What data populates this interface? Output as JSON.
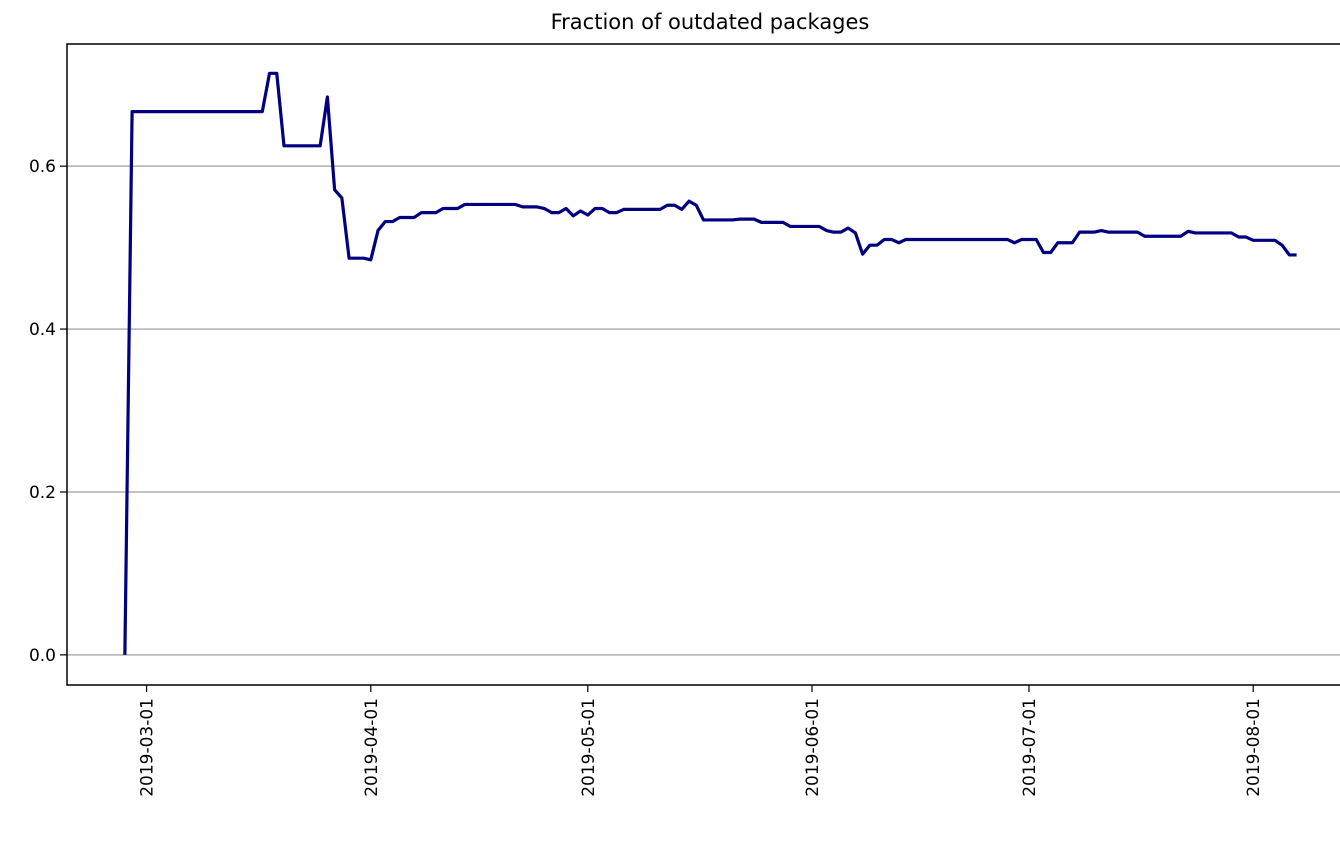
{
  "chart_data": {
    "type": "line",
    "title": "Fraction of outdated packages",
    "x": [
      "2019-02-26",
      "2019-02-27",
      "2019-03-17",
      "2019-03-18",
      "2019-03-19",
      "2019-03-20",
      "2019-03-25",
      "2019-03-26",
      "2019-03-27",
      "2019-03-28",
      "2019-03-29",
      "2019-03-31",
      "2019-04-01",
      "2019-04-02",
      "2019-04-03",
      "2019-04-04",
      "2019-04-05",
      "2019-04-07",
      "2019-04-08",
      "2019-04-10",
      "2019-04-11",
      "2019-04-13",
      "2019-04-14",
      "2019-04-21",
      "2019-04-22",
      "2019-04-24",
      "2019-04-25",
      "2019-04-26",
      "2019-04-27",
      "2019-04-28",
      "2019-04-29",
      "2019-04-30",
      "2019-05-01",
      "2019-05-02",
      "2019-05-03",
      "2019-05-04",
      "2019-05-05",
      "2019-05-06",
      "2019-05-11",
      "2019-05-12",
      "2019-05-13",
      "2019-05-14",
      "2019-05-15",
      "2019-05-16",
      "2019-05-17",
      "2019-05-21",
      "2019-05-22",
      "2019-05-24",
      "2019-05-25",
      "2019-05-28",
      "2019-05-29",
      "2019-06-02",
      "2019-06-03",
      "2019-06-04",
      "2019-06-05",
      "2019-06-06",
      "2019-06-07",
      "2019-06-08",
      "2019-06-09",
      "2019-06-10",
      "2019-06-11",
      "2019-06-12",
      "2019-06-13",
      "2019-06-14",
      "2019-06-28",
      "2019-06-29",
      "2019-06-30",
      "2019-07-02",
      "2019-07-03",
      "2019-07-04",
      "2019-07-05",
      "2019-07-07",
      "2019-07-08",
      "2019-07-10",
      "2019-07-11",
      "2019-07-12",
      "2019-07-16",
      "2019-07-17",
      "2019-07-22",
      "2019-07-23",
      "2019-07-24",
      "2019-07-29",
      "2019-07-30",
      "2019-07-31",
      "2019-08-01",
      "2019-08-04",
      "2019-08-05",
      "2019-08-06",
      "2019-08-07"
    ],
    "series": [
      {
        "name": "Fraction of outdated packages",
        "color": "#000080",
        "values": [
          0.0,
          0.667,
          0.667,
          0.714,
          0.714,
          0.625,
          0.625,
          0.685,
          0.571,
          0.561,
          0.487,
          0.487,
          0.485,
          0.521,
          0.532,
          0.532,
          0.537,
          0.537,
          0.543,
          0.543,
          0.548,
          0.548,
          0.553,
          0.553,
          0.55,
          0.55,
          0.548,
          0.543,
          0.543,
          0.548,
          0.539,
          0.545,
          0.54,
          0.548,
          0.548,
          0.543,
          0.543,
          0.547,
          0.547,
          0.552,
          0.552,
          0.547,
          0.557,
          0.552,
          0.534,
          0.534,
          0.535,
          0.535,
          0.531,
          0.531,
          0.526,
          0.526,
          0.521,
          0.519,
          0.519,
          0.524,
          0.518,
          0.492,
          0.503,
          0.503,
          0.51,
          0.51,
          0.506,
          0.51,
          0.51,
          0.506,
          0.51,
          0.51,
          0.494,
          0.494,
          0.506,
          0.506,
          0.519,
          0.519,
          0.521,
          0.519,
          0.519,
          0.514,
          0.514,
          0.52,
          0.518,
          0.518,
          0.513,
          0.513,
          0.509,
          0.509,
          0.503,
          0.491,
          0.491
        ]
      }
    ],
    "xlim": [
      "2019-02-18",
      "2019-08-13"
    ],
    "xticks": [
      "2019-03-01",
      "2019-04-01",
      "2019-05-01",
      "2019-06-01",
      "2019-07-01",
      "2019-08-01"
    ],
    "ylim": [
      -0.037,
      0.75
    ],
    "yticks": [
      {
        "value": 0,
        "label": "0.0"
      },
      0.2,
      0.4,
      0.6
    ],
    "grid": "y"
  }
}
